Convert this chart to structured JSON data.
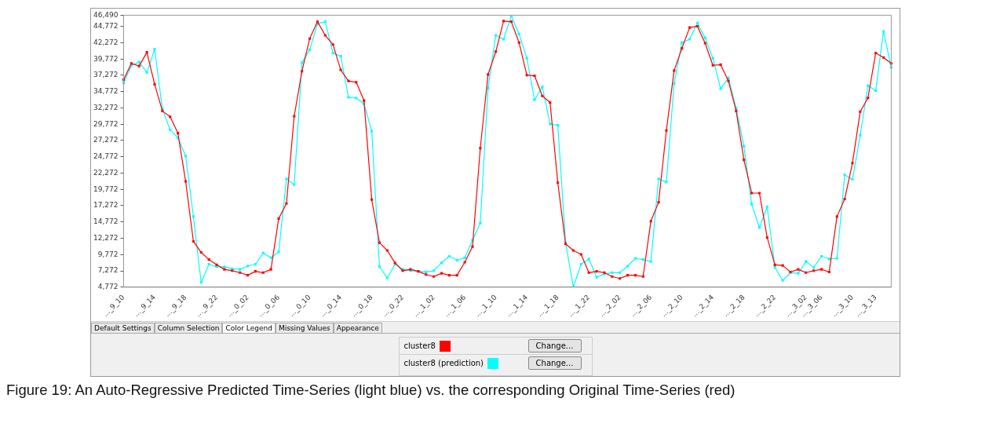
{
  "chart_data": {
    "type": "line",
    "categories": [
      "..._9_10",
      null,
      null,
      null,
      "..._9_14",
      null,
      null,
      null,
      "..._9_18",
      null,
      null,
      null,
      "..._9_22",
      null,
      null,
      null,
      "..._0_02",
      null,
      null,
      null,
      "..._0_06",
      null,
      null,
      null,
      "..._0_10",
      null,
      null,
      null,
      "..._0_14",
      null,
      null,
      null,
      "..._0_18",
      null,
      null,
      null,
      "..._0_22",
      null,
      null,
      null,
      "..._1_02",
      null,
      null,
      null,
      "..._1_06",
      null,
      null,
      null,
      "..._1_10",
      null,
      null,
      null,
      "..._1_14",
      null,
      null,
      null,
      "..._1_18",
      null,
      null,
      null,
      "..._1_22",
      null,
      null,
      null,
      "..._2_02",
      null,
      null,
      null,
      "..._2_06",
      null,
      null,
      null,
      "..._2_10",
      null,
      null,
      null,
      "..._2_14",
      null,
      null,
      null,
      "..._2_18",
      null,
      null,
      null,
      "..._2_22",
      null,
      null,
      null,
      "..._3_02",
      null,
      "..._3_06",
      null,
      null,
      null,
      "..._3_10",
      null,
      null,
      "..._3_13",
      null,
      null
    ],
    "series": [
      {
        "name": "cluster8",
        "color": "#ff0000",
        "values": [
          36600,
          39100,
          38700,
          40800,
          35900,
          31800,
          30900,
          28400,
          21000,
          11800,
          10100,
          9000,
          8200,
          7500,
          7300,
          7000,
          6600,
          7200,
          7000,
          7500,
          15300,
          17600,
          31000,
          37900,
          42900,
          45500,
          43400,
          42000,
          38100,
          36400,
          36200,
          33400,
          18200,
          11600,
          10400,
          8500,
          7300,
          7500,
          7200,
          6700,
          6400,
          6900,
          6600,
          6600,
          8600,
          11000,
          26100,
          37400,
          40900,
          45600,
          45500,
          42300,
          37300,
          37200,
          34100,
          33100,
          20800,
          11400,
          10400,
          9800,
          7000,
          7200,
          7000,
          6400,
          6100,
          6600,
          6600,
          6400,
          14900,
          17800,
          28800,
          38000,
          41400,
          44600,
          44800,
          42200,
          38800,
          38900,
          36400,
          31800,
          24300,
          19200,
          19200,
          12400,
          8200,
          8100,
          7100,
          7500,
          7000,
          7300,
          7500,
          7100,
          15600,
          18300,
          23800,
          31700,
          33800,
          40700,
          40000,
          39100
        ]
      },
      {
        "name": "cluster8 (prediction)",
        "color": "#00ffff",
        "values": [
          36100,
          38800,
          39300,
          37700,
          41300,
          32100,
          28900,
          27700,
          24900,
          15600,
          5500,
          8300,
          7900,
          7900,
          7600,
          7500,
          8000,
          8300,
          10000,
          9300,
          10200,
          21400,
          20500,
          39200,
          41200,
          45200,
          45500,
          40700,
          40200,
          33900,
          33800,
          32900,
          28700,
          7900,
          6200,
          8300,
          7500,
          7300,
          7200,
          7100,
          7300,
          8500,
          9500,
          8900,
          9300,
          12000,
          14600,
          35300,
          43400,
          42800,
          46400,
          43600,
          39900,
          33500,
          35500,
          29800,
          29600,
          11600,
          4800,
          8300,
          9100,
          6300,
          6800,
          7000,
          7000,
          8000,
          9200,
          9000,
          8700,
          21400,
          20900,
          36000,
          42300,
          42800,
          45300,
          43000,
          39900,
          35200,
          36900,
          32200,
          26400,
          17500,
          13900,
          17100,
          7800,
          5800,
          7000,
          6900,
          8700,
          7800,
          9500,
          9100,
          9200,
          22000,
          21300,
          28100,
          35700,
          34900,
          44000,
          38500
        ]
      }
    ],
    "ylim": [
      4772,
      46490
    ],
    "yticks": [
      {
        "value": 4772,
        "label": "4,772"
      },
      {
        "value": 7272,
        "label": "7,272"
      },
      {
        "value": 9772,
        "label": "9,772"
      },
      {
        "value": 12272,
        "label": "12,272"
      },
      {
        "value": 14772,
        "label": "14,772"
      },
      {
        "value": 17272,
        "label": "17,272"
      },
      {
        "value": 19772,
        "label": "19,772"
      },
      {
        "value": 22272,
        "label": "22,272"
      },
      {
        "value": 24772,
        "label": "24,772"
      },
      {
        "value": 27272,
        "label": "27,272"
      },
      {
        "value": 29772,
        "label": "29,772"
      },
      {
        "value": 32272,
        "label": "32,272"
      },
      {
        "value": 34772,
        "label": "34,772"
      },
      {
        "value": 37272,
        "label": "37,272"
      },
      {
        "value": 39772,
        "label": "39,772"
      },
      {
        "value": 42272,
        "label": "42,272"
      },
      {
        "value": 44772,
        "label": "44,772"
      },
      {
        "value": 46490,
        "label": "46,490"
      }
    ],
    "marker": "square",
    "line_style": "solid",
    "legend": "bottom",
    "annotations": [
      "Default Settings",
      "Column Selection",
      "Color Legend",
      "Missing Values",
      "Appearance",
      "Change...",
      "Change...",
      "Figure 19: An Auto-Regressive Predicted Time-Series (light blue) vs. the corresponding Original Time-Series (red)"
    ]
  }
}
